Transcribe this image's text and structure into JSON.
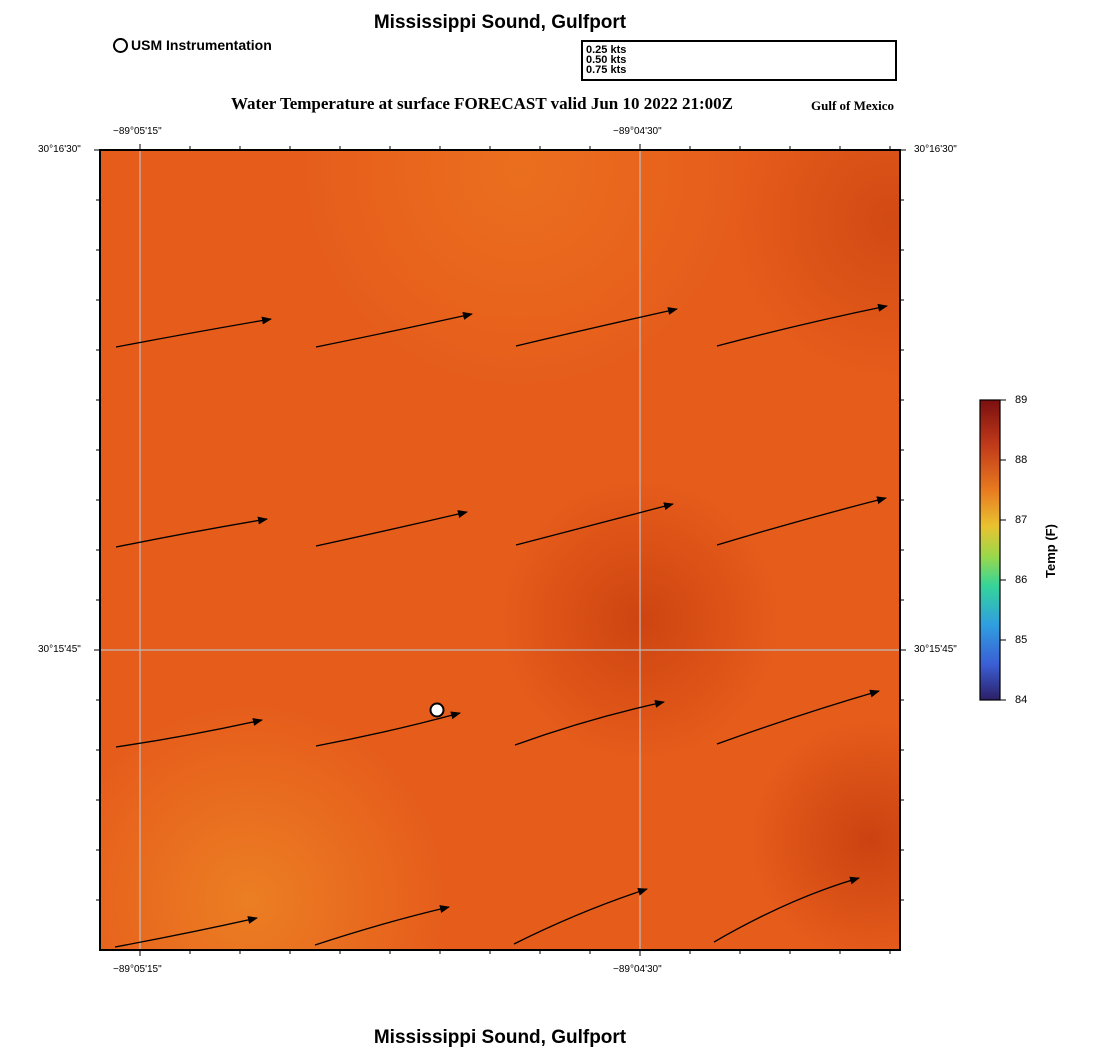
{
  "title_top": "Mississippi Sound, Gulfport",
  "title_bottom": "Mississippi Sound, Gulfport",
  "legend": {
    "usm_label": "USM Instrumentation"
  },
  "vector_key": [
    {
      "label": "0.25 kts",
      "speed": 0.25
    },
    {
      "label": "0.50 kts",
      "speed": 0.5
    },
    {
      "label": "0.75 kts",
      "speed": 0.75
    }
  ],
  "subtitle": "Water Temperature at surface FORECAST valid Jun 10 2022 21:00Z",
  "region": "Gulf of Mexico",
  "axes": {
    "lon_labels": [
      "−89°05'15\"",
      "−89°04'30\""
    ],
    "lat_labels": [
      "30°16'30\"",
      "30°15'45\""
    ]
  },
  "colorbar": {
    "label": "Temp (F)",
    "ticks": [
      "89",
      "88",
      "87",
      "86",
      "85",
      "84"
    ],
    "min": 84,
    "max": 89,
    "colors": [
      "#7a0f0f",
      "#c03a1a",
      "#e87a20",
      "#e9c230",
      "#9bd84a",
      "#35d49a",
      "#2f9ee0",
      "#3b5fd6",
      "#2c1f66"
    ]
  },
  "field": {
    "colors": {
      "base": "#e8601c",
      "warm_dark": "#cc4512",
      "light": "#ea7a20"
    }
  },
  "map_labels": {
    "station_icon": "usm-station-icon",
    "current_arrow": "current-vector-icon"
  }
}
